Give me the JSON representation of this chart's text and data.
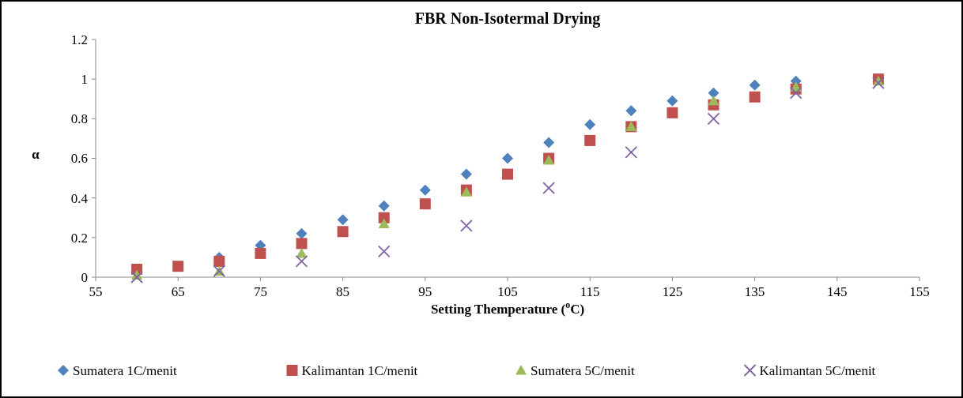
{
  "chart_data": {
    "type": "scatter",
    "title": "FBR Non-Isotermal Drying",
    "xlabel": "Setting Themperature ($^{o}$C)",
    "ylabel": "α",
    "xlim": [
      55,
      155
    ],
    "xticks": [
      55,
      65,
      75,
      85,
      95,
      105,
      115,
      125,
      135,
      145,
      155
    ],
    "ylim": [
      0,
      1.2
    ],
    "yticks": [
      0,
      0.2,
      0.4,
      0.6,
      0.8,
      1,
      1.2
    ],
    "grid": false,
    "legend": "bottom",
    "series": [
      {
        "name": "Sumatera 1C/menit",
        "color": "#4f81bd",
        "marker": "diamond",
        "x": [
          70,
          75,
          80,
          85,
          90,
          95,
          100,
          105,
          110,
          115,
          120,
          125,
          130,
          135,
          140
        ],
        "values": [
          0.1,
          0.16,
          0.22,
          0.29,
          0.36,
          0.44,
          0.52,
          0.6,
          0.68,
          0.77,
          0.84,
          0.89,
          0.93,
          0.97,
          0.99
        ]
      },
      {
        "name": "Kalimantan 1C/menit",
        "color": "#c0504d",
        "marker": "square",
        "x": [
          60,
          65,
          70,
          75,
          80,
          85,
          90,
          95,
          100,
          105,
          110,
          115,
          120,
          125,
          130,
          135,
          140,
          150
        ],
        "values": [
          0.04,
          0.055,
          0.08,
          0.12,
          0.17,
          0.23,
          0.3,
          0.37,
          0.44,
          0.52,
          0.6,
          0.69,
          0.76,
          0.83,
          0.87,
          0.91,
          0.95,
          1.0
        ]
      },
      {
        "name": "Sumatera 5C/menit",
        "color": "#9bbb59",
        "marker": "triangle",
        "x": [
          60,
          70,
          80,
          90,
          100,
          110,
          120,
          130,
          140,
          150
        ],
        "values": [
          0.01,
          0.03,
          0.12,
          0.27,
          0.43,
          0.59,
          0.76,
          0.89,
          0.96,
          0.99
        ]
      },
      {
        "name": "Kalimantan 5C/menit",
        "color": "#8064a2",
        "marker": "cross",
        "x": [
          60,
          70,
          80,
          90,
          100,
          110,
          120,
          130,
          140,
          150
        ],
        "values": [
          0.0,
          0.03,
          0.08,
          0.13,
          0.26,
          0.45,
          0.63,
          0.8,
          0.93,
          0.98
        ]
      }
    ]
  }
}
